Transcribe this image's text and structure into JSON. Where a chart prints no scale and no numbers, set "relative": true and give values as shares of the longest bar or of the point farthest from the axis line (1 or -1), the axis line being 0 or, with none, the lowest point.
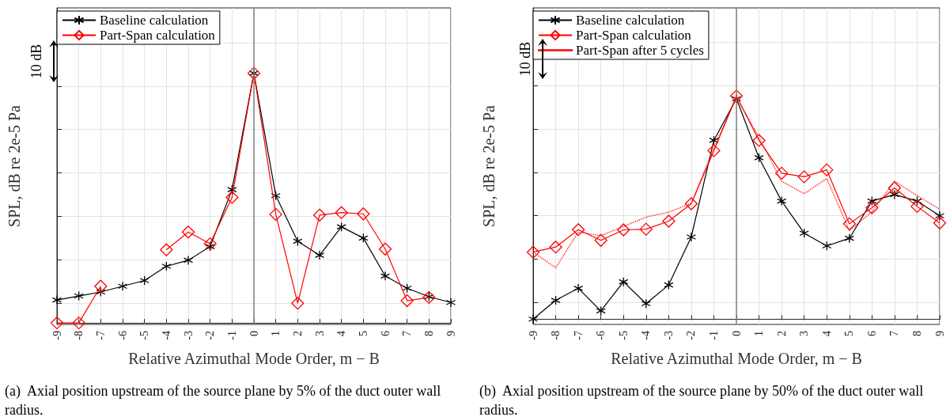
{
  "chart_data": [
    {
      "type": "line",
      "relative": true,
      "ylabel": "SPL, dB re 2e-5 Pa",
      "xlabel": "Relative Azimuthal Mode Order, m − B",
      "categories": [
        "-9",
        "-8",
        "-7",
        "-6",
        "-5",
        "-4",
        "-3",
        "-2",
        "-1",
        "0",
        "1",
        "2",
        "3",
        "4",
        "5",
        "6",
        "7",
        "8",
        "9"
      ],
      "series": [
        {
          "name": "Baseline calculation",
          "color": "#000000",
          "marker": "cross",
          "line_style": "solid",
          "values": [
            0.092,
            0.108,
            0.124,
            0.147,
            0.17,
            0.227,
            0.251,
            0.306,
            0.534,
            1,
            0.51,
            0.327,
            0.271,
            0.385,
            0.34,
            0.188,
            0.139,
            0.105,
            0.082
          ]
        },
        {
          "name": "Part-Span calculation",
          "color": "#ff0000",
          "marker": "diamond",
          "line_style": "solid",
          "values": [
            0,
            0,
            0.147,
            null,
            null,
            0.293,
            0.364,
            0.317,
            0.503,
            1,
            0.435,
            0.079,
            0.432,
            0.442,
            0.437,
            0.296,
            0.089,
            0.102,
            null
          ]
        }
      ],
      "ref_lines": [
        {
          "axis": "x",
          "value": "0",
          "color": "#808080"
        }
      ],
      "annotations": [
        "10 dB",
        "(a)  Axial position upstream of the source plane by 5% of the duct outer wall radius."
      ],
      "grid": true,
      "legend": "top left"
    },
    {
      "type": "line",
      "relative": true,
      "ylabel": "SPL, dB re 2e-5 Pa",
      "xlabel": "Relative Azimuthal Mode Order, m − B",
      "categories": [
        "-9",
        "-8",
        "-7",
        "-6",
        "-5",
        "-4",
        "-3",
        "-2",
        "-1",
        "0",
        "1",
        "2",
        "3",
        "4",
        "5",
        "6",
        "7",
        "8",
        "9"
      ],
      "series": [
        {
          "name": "Baseline calculation",
          "color": "#000000",
          "marker": "cross",
          "line_style": "solid",
          "values": [
            0,
            0.084,
            0.138,
            0.037,
            0.167,
            0.069,
            0.153,
            0.368,
            0.801,
            0.988,
            0.723,
            0.529,
            0.385,
            0.328,
            0.362,
            0.529,
            0.558,
            0.529,
            0.463
          ]
        },
        {
          "name": "Part-Span calculation",
          "color": "#ff0000",
          "marker": "diamond",
          "line_style": "solid",
          "values": [
            0.3,
            0.323,
            0.401,
            0.353,
            0.4,
            0.403,
            0.439,
            0.517,
            0.755,
            1,
            0.801,
            0.654,
            0.638,
            0.669,
            0.427,
            0.499,
            0.588,
            0.505,
            0.431
          ]
        },
        {
          "name": "Part-Span after 5 cycles",
          "color": "#ff0000",
          "marker": "none",
          "line_style": "dotted",
          "values": [
            0.3,
            0.23,
            0.39,
            0.374,
            0.415,
            0.457,
            0.479,
            0.519,
            0.767,
            0.994,
            0.815,
            0.618,
            0.562,
            0.63,
            0.397,
            0.481,
            0.618,
            0.553,
            0.493
          ]
        }
      ],
      "ref_lines": [
        {
          "axis": "x",
          "value": "0",
          "color": "#808080"
        }
      ],
      "annotations": [
        "10 dB",
        "(b)  Axial position upstream of the source plane by 50% of the duct outer wall radius."
      ],
      "grid": true,
      "legend": "top left"
    }
  ]
}
